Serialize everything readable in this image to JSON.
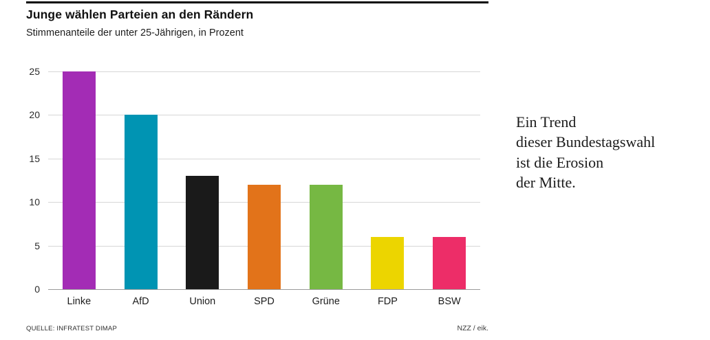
{
  "chart": {
    "title": "Junge wählen Parteien an den Rändern",
    "subtitle": "Stimmenanteile der unter 25-Jährigen, in Prozent",
    "source": "QUELLE: INFRATEST DIMAP",
    "credit": "NZZ / eik."
  },
  "annotation": {
    "lines": [
      "Ein Trend",
      "dieser Bundestagswahl",
      "ist die Erosion",
      "der Mitte."
    ]
  },
  "chart_data": {
    "type": "bar",
    "title": "Junge wählen Parteien an den Rändern",
    "subtitle": "Stimmenanteile der unter 25-Jährigen, in Prozent",
    "categories": [
      "Linke",
      "AfD",
      "Union",
      "SPD",
      "Grüne",
      "FDP",
      "BSW"
    ],
    "values": [
      25,
      20,
      13,
      12,
      12,
      6,
      6
    ],
    "colors": [
      "#a32cb5",
      "#0094b3",
      "#1a1a1a",
      "#e2731a",
      "#76b843",
      "#ecd500",
      "#ed2d68"
    ],
    "xlabel": "",
    "ylabel": "",
    "ylim": [
      0,
      25
    ],
    "yticks": [
      0,
      5,
      10,
      15,
      20,
      25
    ],
    "grid": true,
    "legend": "none"
  }
}
